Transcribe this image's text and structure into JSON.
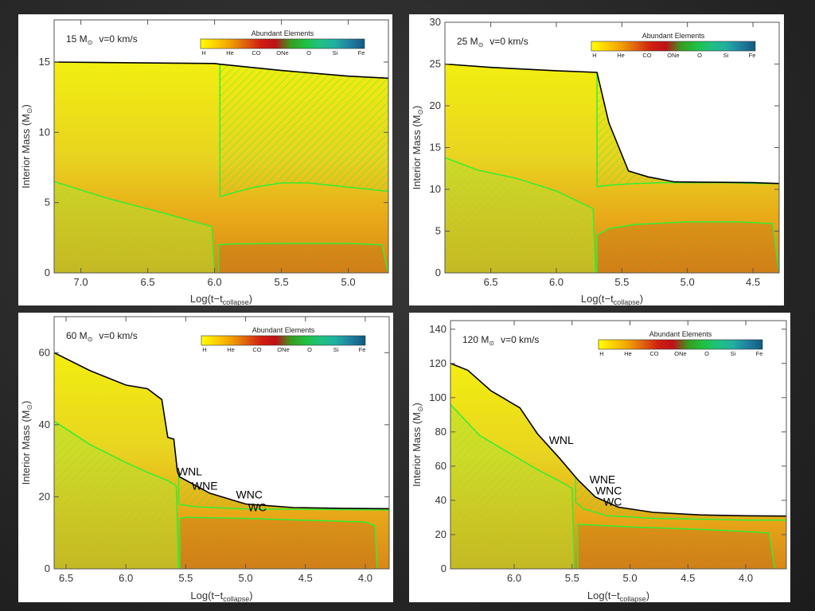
{
  "colorbar": {
    "title": "Abundant Elements",
    "labels": [
      "H",
      "He",
      "CO",
      "ONe",
      "O",
      "Si",
      "Fe"
    ],
    "colors": [
      "#ffff00",
      "#ffd000",
      "#f0a000",
      "#e06010",
      "#d02010",
      "#c01018",
      "#3a9a20",
      "#20c040",
      "#20c080",
      "#20b0a0",
      "#2080a0",
      "#105a80"
    ]
  },
  "colors": {
    "envelope": "#f2ee10",
    "core_yellow": "#e8d420",
    "core_orange": "#e8a818",
    "deep": "#d88818",
    "convective_line": "#33ee33",
    "surface_line": "#000000",
    "background": "#2a2a2a"
  },
  "chart_data": [
    {
      "type": "area",
      "title_mass": "15 M",
      "title_sub": "⊙",
      "title_vel": "v=0 km/s",
      "ylabel": "Interior Mass (M",
      "ylabel_sun": "⊙",
      "ylabel_close": ")",
      "xlabel": "Log(t−t",
      "xlabel_sub": "collapse",
      "xlabel_close": ")",
      "xlim": [
        7.2,
        4.7
      ],
      "ylim": [
        0,
        18
      ],
      "xticks": [
        7.0,
        6.5,
        6.0,
        5.5,
        5.0
      ],
      "xtick_labels": [
        "7.0",
        "6.5",
        "6.0",
        "5.5",
        "5.0"
      ],
      "yticks": [
        0,
        5,
        10,
        15
      ],
      "ytick_labels": [
        "0",
        "5",
        "10",
        "15"
      ],
      "surface": {
        "x": [
          7.2,
          6.6,
          6.0,
          5.96,
          5.5,
          5.0,
          4.7
        ],
        "y": [
          15.0,
          14.95,
          14.9,
          14.85,
          14.4,
          14.0,
          13.85
        ]
      },
      "conv_core": {
        "x": [
          7.2,
          6.8,
          6.4,
          6.1,
          6.02,
          6.0
        ],
        "y": [
          6.5,
          5.3,
          4.3,
          3.5,
          3.3,
          0
        ]
      },
      "conv_shell": {
        "x": [
          5.96,
          5.9,
          5.7,
          5.5,
          5.3,
          5.0,
          4.7
        ],
        "y": [
          5.4,
          5.6,
          6.1,
          6.4,
          6.4,
          6.1,
          5.8
        ]
      },
      "conv_shell_start": 5.96,
      "inner_shell": {
        "x": [
          5.97,
          5.9,
          5.5,
          5.0,
          4.75,
          4.7
        ],
        "y": [
          2.0,
          2.05,
          2.1,
          2.1,
          2.0,
          0
        ]
      },
      "phases": []
    },
    {
      "type": "area",
      "title_mass": "25 M",
      "title_sub": "⊙",
      "title_vel": "v=0 km/s",
      "ylabel": "Interior Mass (M",
      "ylabel_sun": "⊙",
      "ylabel_close": ")",
      "xlabel": "Log(t−t",
      "xlabel_sub": "collapse",
      "xlabel_close": ")",
      "xlim": [
        6.85,
        4.3
      ],
      "ylim": [
        0,
        30
      ],
      "xticks": [
        6.5,
        6.0,
        5.5,
        5.0,
        4.5
      ],
      "xtick_labels": [
        "6.5",
        "6.0",
        "5.5",
        "5.0",
        "4.5"
      ],
      "yticks": [
        0,
        5,
        10,
        15,
        20,
        25,
        30
      ],
      "ytick_labels": [
        "0",
        "5",
        "10",
        "15",
        "20",
        "25",
        "30"
      ],
      "surface": {
        "x": [
          6.85,
          6.5,
          6.0,
          5.69,
          5.6,
          5.45,
          5.3,
          5.1,
          4.8,
          4.5,
          4.3
        ],
        "y": [
          25.0,
          24.6,
          24.2,
          24.0,
          18.0,
          12.2,
          11.5,
          10.9,
          10.85,
          10.8,
          10.7
        ]
      },
      "conv_core": {
        "x": [
          6.85,
          6.6,
          6.3,
          6.0,
          5.8,
          5.72,
          5.7
        ],
        "y": [
          13.8,
          12.3,
          11.3,
          9.8,
          8.3,
          7.7,
          0
        ]
      },
      "conv_shell": {
        "x": [
          5.69,
          5.6,
          5.4,
          5.2,
          5.0,
          4.7,
          4.4,
          4.3
        ],
        "y": [
          10.3,
          10.5,
          10.7,
          10.8,
          10.8,
          10.8,
          10.7,
          10.7
        ]
      },
      "conv_shell_start": 5.69,
      "inner_shell": {
        "x": [
          5.69,
          5.6,
          5.4,
          5.0,
          4.6,
          4.35,
          4.3
        ],
        "y": [
          4.5,
          5.3,
          5.8,
          6.1,
          6.1,
          5.9,
          0
        ]
      },
      "phases": []
    },
    {
      "type": "area",
      "title_mass": "60 M",
      "title_sub": "⊙",
      "title_vel": "v=0 km/s",
      "ylabel": "Interior Mass (M",
      "ylabel_sun": "⊙",
      "ylabel_close": ")",
      "xlabel": "Log(t−t",
      "xlabel_sub": "collapse",
      "xlabel_close": ")",
      "xlim": [
        6.6,
        3.8
      ],
      "ylim": [
        0,
        70
      ],
      "xticks": [
        6.5,
        6.0,
        5.5,
        5.0,
        4.5,
        4.0
      ],
      "xtick_labels": [
        "6.5",
        "6.0",
        "5.5",
        "5.0",
        "4.5",
        "4.0"
      ],
      "yticks": [
        0,
        20,
        40,
        60
      ],
      "ytick_labels": [
        "0",
        "20",
        "40",
        "60"
      ],
      "surface": {
        "x": [
          6.6,
          6.3,
          6.0,
          5.82,
          5.7,
          5.65,
          5.6,
          5.57,
          5.55,
          5.3,
          5.0,
          4.6,
          4.2,
          3.8
        ],
        "y": [
          60.0,
          55.0,
          51.0,
          50.0,
          47.0,
          36.5,
          36.0,
          27.0,
          25.5,
          21.0,
          18.0,
          17.0,
          16.8,
          16.7
        ]
      },
      "conv_core": {
        "x": [
          6.6,
          6.3,
          6.0,
          5.8,
          5.65,
          5.58,
          5.56
        ],
        "y": [
          41.0,
          34.5,
          29.5,
          26.5,
          24.5,
          23.0,
          0
        ]
      },
      "conv_shell": {
        "x": [
          5.55,
          5.4,
          5.0,
          4.5,
          4.0,
          3.9,
          3.8
        ],
        "y": [
          17.8,
          17.2,
          16.6,
          16.5,
          16.4,
          16.4,
          16.3
        ]
      },
      "conv_shell_start": 5.56,
      "inner_shell": {
        "x": [
          5.55,
          5.5,
          5.0,
          4.5,
          4.0,
          3.92,
          3.9
        ],
        "y": [
          14.0,
          14.3,
          14.0,
          13.5,
          13.0,
          12.0,
          0
        ]
      },
      "phases": [
        {
          "label": "WNL",
          "x": 5.57,
          "y": 26.0
        },
        {
          "label": "WNE",
          "x": 5.45,
          "y": 22.0
        },
        {
          "label": "WNC",
          "x": 5.08,
          "y": 19.5
        },
        {
          "label": "WC",
          "x": 4.98,
          "y": 16.0
        }
      ]
    },
    {
      "type": "area",
      "title_mass": "120 M",
      "title_sub": "⊙",
      "title_vel": "v=0 km/s",
      "ylabel": "Interior Mass (M",
      "ylabel_sun": "⊙",
      "ylabel_close": ")",
      "xlabel": "Log(t−t",
      "xlabel_sub": "collapse",
      "xlabel_close": ")",
      "xlim": [
        6.55,
        3.65
      ],
      "ylim": [
        0,
        145
      ],
      "xticks": [
        6.0,
        5.5,
        5.0,
        4.5,
        4.0
      ],
      "xtick_labels": [
        "6.0",
        "5.5",
        "5.0",
        "4.5",
        "4.0"
      ],
      "yticks": [
        0,
        20,
        40,
        60,
        80,
        100,
        120,
        140
      ],
      "ytick_labels": [
        "0",
        "20",
        "40",
        "60",
        "80",
        "100",
        "120",
        "140"
      ],
      "surface": {
        "x": [
          6.55,
          6.4,
          6.2,
          6.0,
          5.95,
          5.8,
          5.6,
          5.45,
          5.3,
          5.1,
          4.8,
          4.4,
          4.0,
          3.65
        ],
        "y": [
          120.0,
          116.0,
          104.0,
          96.0,
          94.0,
          79.0,
          64.0,
          52.0,
          42.0,
          36.0,
          33.0,
          31.5,
          31.0,
          30.8
        ]
      },
      "conv_core": {
        "x": [
          6.55,
          6.3,
          6.0,
          5.8,
          5.6,
          5.5,
          5.48
        ],
        "y": [
          96.0,
          78.0,
          66.0,
          58.0,
          51.0,
          47.0,
          0
        ]
      },
      "conv_shell": {
        "x": [
          5.47,
          5.4,
          5.2,
          4.8,
          4.4,
          4.0,
          3.65
        ],
        "y": [
          39.0,
          35.0,
          31.0,
          29.5,
          29.0,
          28.5,
          28.5
        ]
      },
      "conv_shell_start": 5.47,
      "inner_shell": {
        "x": [
          5.45,
          5.3,
          5.0,
          4.6,
          4.2,
          3.8,
          3.75
        ],
        "y": [
          26.0,
          25.5,
          24.5,
          23.5,
          22.5,
          21.0,
          0
        ]
      },
      "phases": [
        {
          "label": "WNL",
          "x": 5.7,
          "y": 73.0
        },
        {
          "label": "WNE",
          "x": 5.35,
          "y": 50.0
        },
        {
          "label": "WNC",
          "x": 5.3,
          "y": 43.5
        },
        {
          "label": "WC",
          "x": 5.23,
          "y": 37.0
        }
      ]
    }
  ]
}
